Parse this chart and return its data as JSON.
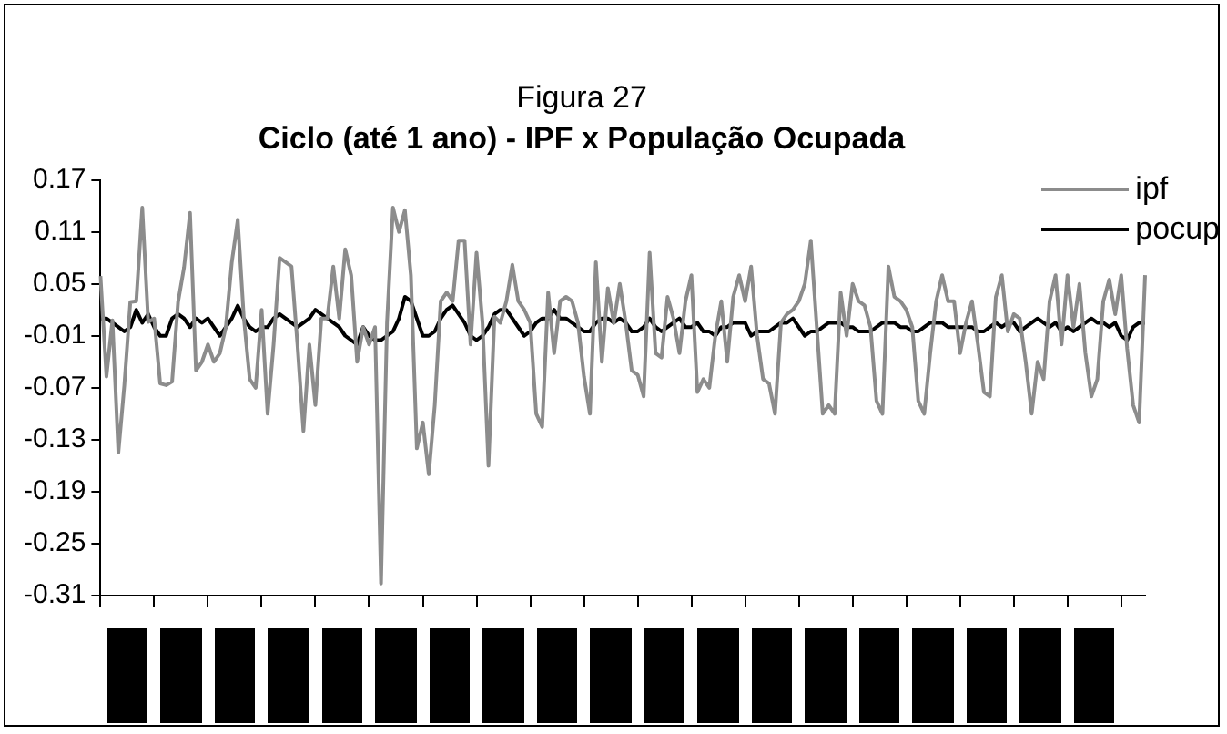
{
  "chart_data": {
    "type": "line",
    "title": "Figura 27",
    "subtitle": "Ciclo (até 1 ano) - IPF x População Ocupada",
    "categories": [
      null,
      null,
      null,
      null,
      null,
      null,
      null,
      null,
      null,
      null,
      null,
      null,
      null,
      null,
      null,
      null,
      null,
      null,
      null,
      null,
      null,
      null,
      null,
      null,
      null,
      null,
      null,
      null,
      null,
      null,
      null,
      null,
      null,
      null,
      null,
      null,
      null,
      null,
      null,
      null,
      null,
      null,
      null,
      null,
      null,
      null,
      null,
      null,
      null,
      null,
      null,
      null,
      null,
      null,
      null,
      null,
      null,
      null,
      null,
      null,
      null,
      null,
      null,
      null,
      null,
      null,
      null,
      null,
      null,
      null,
      null,
      null,
      null,
      null,
      null,
      null,
      null,
      null,
      null,
      null,
      null,
      null,
      null,
      null,
      null,
      null,
      null,
      null,
      null,
      null,
      null,
      null,
      null,
      null,
      null,
      null,
      null,
      null,
      null,
      null,
      null,
      null,
      null,
      null,
      null,
      null,
      null,
      null,
      null,
      null,
      null,
      null,
      null,
      null,
      null,
      null,
      null,
      null,
      null,
      null,
      null,
      null,
      null,
      null,
      null,
      null,
      null,
      null,
      null,
      null,
      null,
      null,
      null,
      null,
      null,
      null,
      null,
      null,
      null,
      null,
      null,
      null,
      null,
      null,
      null,
      null,
      null,
      null,
      null,
      null,
      null,
      null,
      null,
      null,
      null,
      null,
      null,
      null,
      null,
      null,
      null,
      null,
      null,
      null,
      null,
      null,
      null,
      null,
      null,
      null,
      null,
      null,
      null,
      null,
      null,
      null
    ],
    "series": [
      {
        "name": "ipf",
        "color": "#8c8c8c",
        "values": [
          0.059,
          -0.057,
          0.008,
          -0.145,
          -0.067,
          0.029,
          0.03,
          0.138,
          0.006,
          0.01,
          -0.065,
          -0.067,
          -0.063,
          0.029,
          0.069,
          0.132,
          -0.05,
          -0.04,
          -0.02,
          -0.04,
          -0.03,
          0.0,
          0.075,
          0.124,
          0.012,
          -0.06,
          -0.07,
          0.02,
          -0.1,
          -0.02,
          0.08,
          0.075,
          0.07,
          -0.02,
          -0.12,
          -0.02,
          -0.09,
          0.01,
          0.01,
          0.07,
          0.01,
          0.09,
          0.06,
          -0.04,
          0.0,
          -0.02,
          0.0,
          -0.296,
          0.005,
          0.138,
          0.11,
          0.135,
          0.06,
          -0.14,
          -0.11,
          -0.17,
          -0.09,
          0.03,
          0.04,
          0.03,
          0.1,
          0.1,
          -0.02,
          0.086,
          0.005,
          -0.16,
          0.012,
          0.005,
          0.03,
          0.072,
          0.03,
          0.02,
          0.005,
          -0.1,
          -0.115,
          0.04,
          -0.03,
          0.03,
          0.035,
          0.03,
          0.005,
          -0.057,
          -0.1,
          0.075,
          -0.04,
          0.045,
          0.005,
          0.05,
          0.005,
          -0.05,
          -0.055,
          -0.08,
          0.086,
          -0.03,
          -0.035,
          0.035,
          0.01,
          -0.03,
          0.03,
          0.06,
          -0.075,
          -0.06,
          -0.07,
          -0.01,
          0.03,
          -0.04,
          0.035,
          0.06,
          0.03,
          0.07,
          -0.01,
          -0.06,
          -0.065,
          -0.1,
          0.005,
          0.015,
          0.02,
          0.03,
          0.05,
          0.1,
          0.0,
          -0.1,
          -0.09,
          -0.1,
          0.04,
          -0.01,
          0.05,
          0.03,
          0.025,
          0.0,
          -0.085,
          -0.1,
          0.07,
          0.035,
          0.03,
          0.02,
          0.0,
          -0.085,
          -0.1,
          -0.03,
          0.03,
          0.06,
          0.03,
          0.03,
          -0.03,
          0.005,
          0.03,
          -0.02,
          -0.075,
          -0.08,
          0.035,
          0.06,
          -0.005,
          0.015,
          0.01,
          -0.04,
          -0.1,
          -0.04,
          -0.06,
          0.03,
          0.06,
          -0.02,
          0.06,
          0.0,
          0.05,
          -0.03,
          -0.08,
          -0.06,
          0.03,
          0.055,
          0.015,
          0.06,
          -0.025,
          -0.09,
          -0.11,
          0.06
        ]
      },
      {
        "name": "pocup",
        "color": "#000000",
        "values": [
          0.01,
          0.01,
          0.005,
          0.0,
          -0.005,
          0.0,
          0.02,
          0.005,
          0.015,
          0.0,
          -0.01,
          -0.01,
          0.01,
          0.015,
          0.01,
          0.0,
          0.01,
          0.005,
          0.01,
          0.0,
          -0.01,
          0.0,
          0.01,
          0.025,
          0.01,
          0.0,
          -0.005,
          0.0,
          0.0,
          0.01,
          0.015,
          0.01,
          0.005,
          0.0,
          0.005,
          0.01,
          0.02,
          0.015,
          0.01,
          0.005,
          0.0,
          -0.01,
          -0.015,
          -0.02,
          0.0,
          -0.01,
          -0.015,
          -0.015,
          -0.01,
          -0.005,
          0.01,
          0.035,
          0.03,
          0.01,
          -0.01,
          -0.01,
          -0.005,
          0.01,
          0.02,
          0.025,
          0.015,
          0.005,
          -0.01,
          -0.015,
          -0.01,
          0.0,
          0.015,
          0.02,
          0.02,
          0.01,
          0.0,
          -0.01,
          -0.005,
          0.005,
          0.01,
          0.01,
          0.02,
          0.01,
          0.01,
          0.005,
          0.0,
          -0.005,
          -0.005,
          0.005,
          0.01,
          0.01,
          0.005,
          0.01,
          0.005,
          -0.005,
          -0.005,
          0.0,
          0.01,
          0.0,
          -0.005,
          0.0,
          0.005,
          0.01,
          0.0,
          0.0,
          0.005,
          -0.005,
          -0.005,
          -0.01,
          0.0,
          0.0,
          0.005,
          0.005,
          0.005,
          -0.01,
          -0.005,
          -0.005,
          -0.005,
          0.0,
          0.005,
          0.005,
          0.01,
          0.0,
          -0.01,
          -0.005,
          -0.005,
          0.0,
          0.005,
          0.005,
          0.005,
          0.0,
          0.0,
          -0.005,
          -0.005,
          -0.005,
          0.0,
          0.005,
          0.005,
          0.005,
          0.0,
          0.0,
          -0.005,
          -0.005,
          0.0,
          0.005,
          0.005,
          0.005,
          0.0,
          0.0,
          0.0,
          0.0,
          0.0,
          -0.005,
          -0.005,
          0.0,
          0.005,
          0.0,
          0.005,
          0.005,
          -0.005,
          0.0,
          0.005,
          0.01,
          0.005,
          0.0,
          0.005,
          -0.005,
          0.0,
          -0.005,
          0.0,
          0.005,
          0.01,
          0.005,
          0.005,
          0.0,
          0.005,
          -0.01,
          -0.015,
          0.0,
          0.005,
          0.005
        ]
      }
    ],
    "ylim": [
      -0.31,
      0.17
    ],
    "yticks": [
      -0.31,
      -0.25,
      -0.19,
      -0.13,
      -0.07,
      -0.01,
      0.05,
      0.11,
      0.17
    ],
    "tick_labels": "y",
    "grid": false,
    "legend": "top right",
    "marker": "none",
    "line_style": "solid"
  }
}
